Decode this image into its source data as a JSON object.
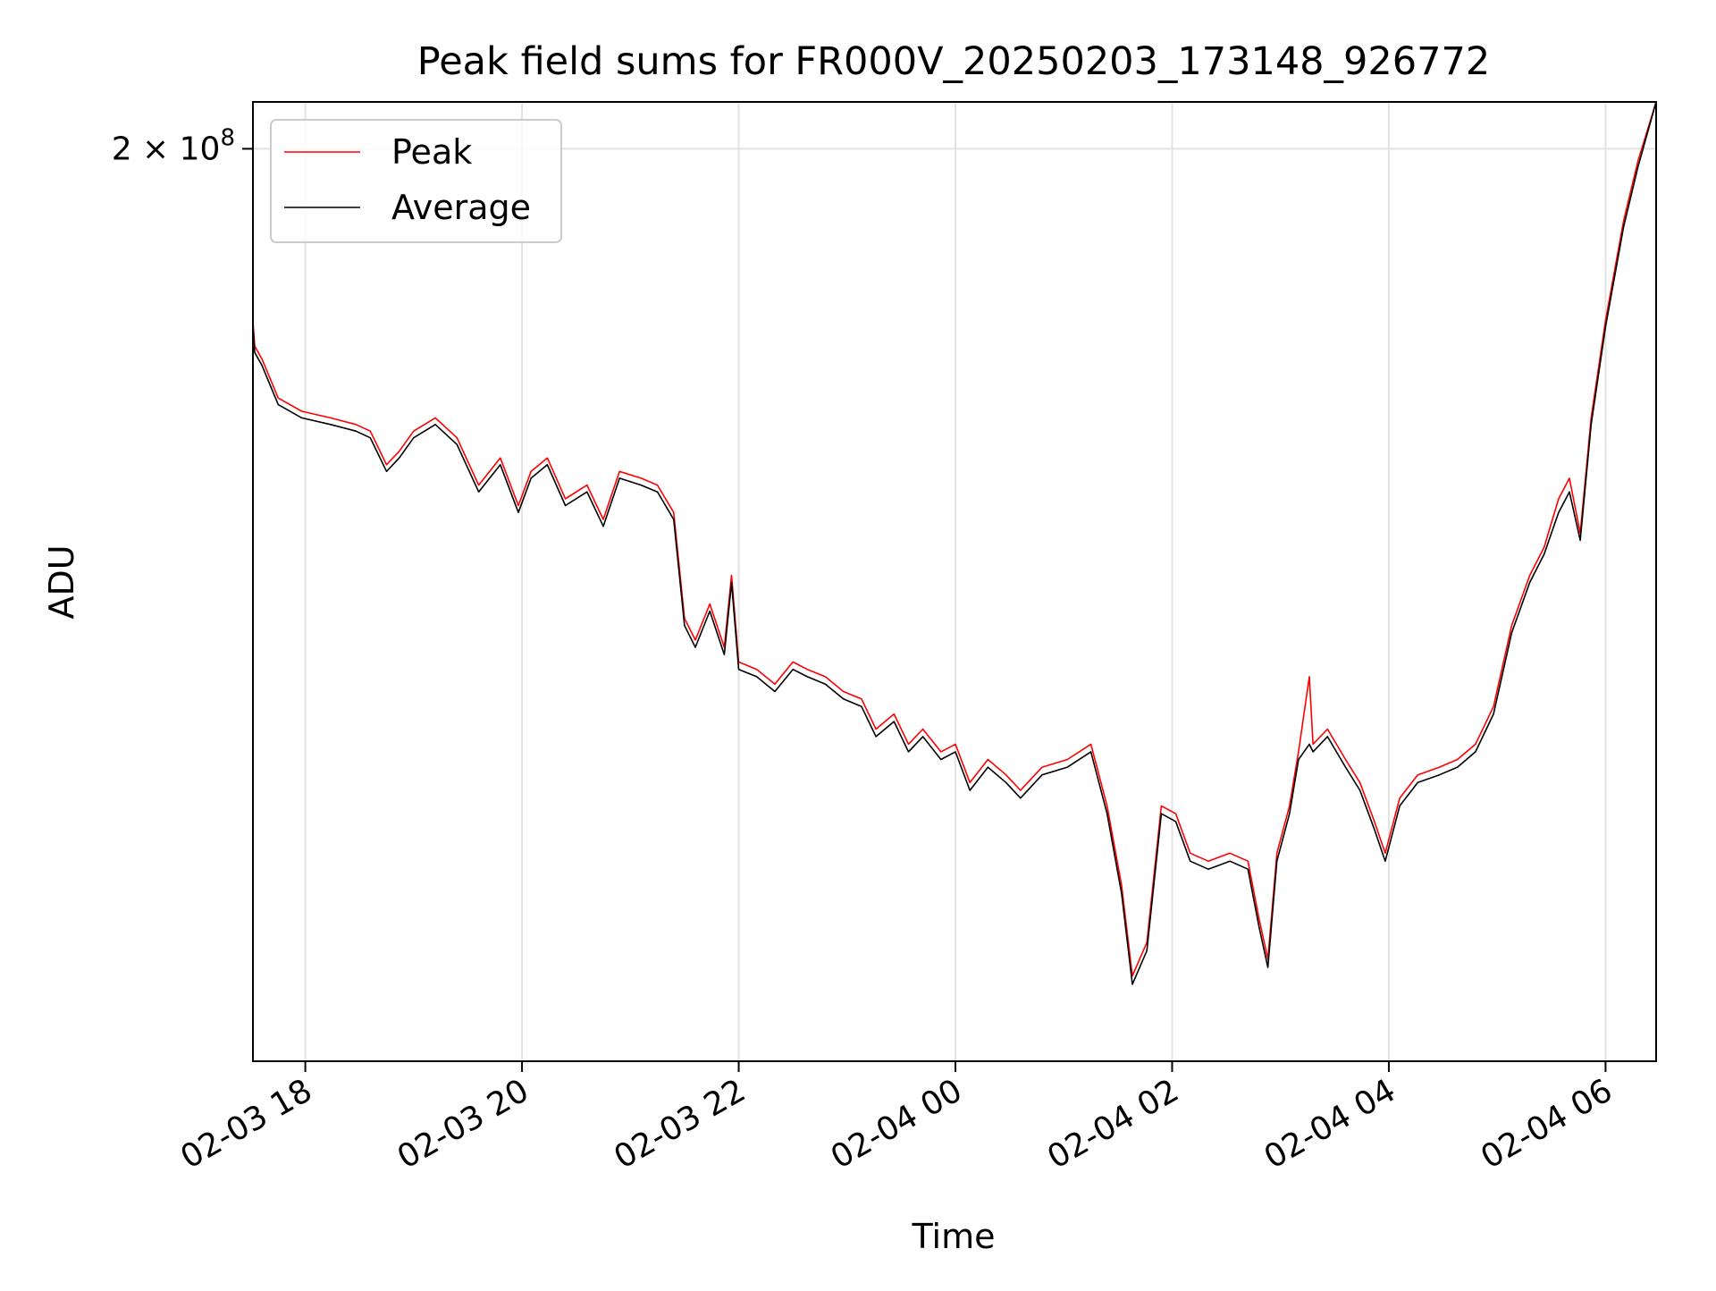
{
  "chart_data": {
    "type": "line",
    "title": "Peak field sums for FR000V_20250203_173148_926772",
    "xlabel": "Time",
    "ylabel": "ADU",
    "x_axis": {
      "kind": "datetime",
      "range": [
        "2025-02-03 17:31",
        "2025-02-04 06:28"
      ],
      "ticks": [
        {
          "value": "2025-02-03 18:00",
          "label": "02-03 18"
        },
        {
          "value": "2025-02-03 20:00",
          "label": "02-03 20"
        },
        {
          "value": "2025-02-03 22:00",
          "label": "02-03 22"
        },
        {
          "value": "2025-02-04 00:00",
          "label": "02-04 00"
        },
        {
          "value": "2025-02-04 02:00",
          "label": "02-04 02"
        },
        {
          "value": "2025-02-04 04:00",
          "label": "02-04 04"
        },
        {
          "value": "2025-02-04 06:00",
          "label": "02-04 06"
        }
      ]
    },
    "y_axis": {
      "scale": "log",
      "range": [
        136000000,
        204000000
      ],
      "ticks": [
        {
          "value": 200000000,
          "base": "2 × 10",
          "exponent": "8"
        }
      ]
    },
    "grid": true,
    "legend": {
      "placement": "top-left",
      "entries": [
        "Peak",
        "Average"
      ]
    },
    "colors": {
      "Peak": "#ff0000",
      "Average": "#000000"
    },
    "series": [
      {
        "name": "Peak",
        "color": "#ff0000",
        "points": [
          [
            "2025-02-03 17:31",
            186000000
          ],
          [
            "2025-02-03 17:32",
            184000000
          ],
          [
            "2025-02-03 17:36",
            183000000
          ],
          [
            "2025-02-03 17:45",
            180000000
          ],
          [
            "2025-02-03 17:58",
            179000000
          ],
          [
            "2025-02-03 18:14",
            178500000
          ],
          [
            "2025-02-03 18:28",
            178000000
          ],
          [
            "2025-02-03 18:36",
            177500000
          ],
          [
            "2025-02-03 18:45",
            175000000
          ],
          [
            "2025-02-03 18:52",
            176000000
          ],
          [
            "2025-02-03 19:00",
            177500000
          ],
          [
            "2025-02-03 19:12",
            178500000
          ],
          [
            "2025-02-03 19:24",
            177000000
          ],
          [
            "2025-02-03 19:36",
            173500000
          ],
          [
            "2025-02-03 19:48",
            175500000
          ],
          [
            "2025-02-03 19:58",
            172000000
          ],
          [
            "2025-02-03 20:05",
            174500000
          ],
          [
            "2025-02-03 20:14",
            175500000
          ],
          [
            "2025-02-03 20:24",
            172500000
          ],
          [
            "2025-02-03 20:36",
            173500000
          ],
          [
            "2025-02-03 20:45",
            171000000
          ],
          [
            "2025-02-03 20:54",
            174500000
          ],
          [
            "2025-02-03 21:06",
            174000000
          ],
          [
            "2025-02-03 21:15",
            173500000
          ],
          [
            "2025-02-03 21:24",
            171500000
          ],
          [
            "2025-02-03 21:30",
            164000000
          ],
          [
            "2025-02-03 21:36",
            162500000
          ],
          [
            "2025-02-03 21:44",
            165000000
          ],
          [
            "2025-02-03 21:52",
            162000000
          ],
          [
            "2025-02-03 21:56",
            167000000
          ],
          [
            "2025-02-03 22:00",
            161000000
          ],
          [
            "2025-02-03 22:10",
            160500000
          ],
          [
            "2025-02-03 22:20",
            159500000
          ],
          [
            "2025-02-03 22:30",
            161000000
          ],
          [
            "2025-02-03 22:38",
            160500000
          ],
          [
            "2025-02-03 22:48",
            160000000
          ],
          [
            "2025-02-03 22:58",
            159000000
          ],
          [
            "2025-02-03 23:08",
            158500000
          ],
          [
            "2025-02-03 23:16",
            156500000
          ],
          [
            "2025-02-03 23:26",
            157500000
          ],
          [
            "2025-02-03 23:34",
            155500000
          ],
          [
            "2025-02-03 23:42",
            156500000
          ],
          [
            "2025-02-03 23:52",
            155000000
          ],
          [
            "2025-02-04 00:00",
            155500000
          ],
          [
            "2025-02-04 00:08",
            153000000
          ],
          [
            "2025-02-04 00:18",
            154500000
          ],
          [
            "2025-02-04 00:28",
            153500000
          ],
          [
            "2025-02-04 00:36",
            152500000
          ],
          [
            "2025-02-04 00:48",
            154000000
          ],
          [
            "2025-02-04 01:02",
            154500000
          ],
          [
            "2025-02-04 01:15",
            155500000
          ],
          [
            "2025-02-04 01:24",
            151500000
          ],
          [
            "2025-02-04 01:32",
            146500000
          ],
          [
            "2025-02-04 01:38",
            141000000
          ],
          [
            "2025-02-04 01:46",
            143000000
          ],
          [
            "2025-02-04 01:54",
            151500000
          ],
          [
            "2025-02-04 02:02",
            151000000
          ],
          [
            "2025-02-04 02:10",
            148500000
          ],
          [
            "2025-02-04 02:20",
            148000000
          ],
          [
            "2025-02-04 02:32",
            148500000
          ],
          [
            "2025-02-04 02:42",
            148000000
          ],
          [
            "2025-02-04 02:48",
            144500000
          ],
          [
            "2025-02-04 02:53",
            142000000
          ],
          [
            "2025-02-04 02:58",
            148500000
          ],
          [
            "2025-02-04 03:05",
            151500000
          ],
          [
            "2025-02-04 03:10",
            155000000
          ],
          [
            "2025-02-04 03:16",
            160000000
          ],
          [
            "2025-02-04 03:18",
            155500000
          ],
          [
            "2025-02-04 03:26",
            156500000
          ],
          [
            "2025-02-04 03:36",
            154500000
          ],
          [
            "2025-02-04 03:44",
            153000000
          ],
          [
            "2025-02-04 03:52",
            150500000
          ],
          [
            "2025-02-04 03:58",
            148500000
          ],
          [
            "2025-02-04 04:06",
            152000000
          ],
          [
            "2025-02-04 04:16",
            153500000
          ],
          [
            "2025-02-04 04:28",
            154000000
          ],
          [
            "2025-02-04 04:38",
            154500000
          ],
          [
            "2025-02-04 04:48",
            155500000
          ],
          [
            "2025-02-04 04:58",
            158000000
          ],
          [
            "2025-02-04 05:08",
            163500000
          ],
          [
            "2025-02-04 05:18",
            167000000
          ],
          [
            "2025-02-04 05:26",
            169000000
          ],
          [
            "2025-02-04 05:34",
            172500000
          ],
          [
            "2025-02-04 05:40",
            174000000
          ],
          [
            "2025-02-04 05:46",
            170000000
          ],
          [
            "2025-02-04 05:52",
            178500000
          ],
          [
            "2025-02-04 06:00",
            186000000
          ],
          [
            "2025-02-04 06:10",
            194000000
          ],
          [
            "2025-02-04 06:18",
            199000000
          ],
          [
            "2025-02-04 06:28",
            204000000
          ]
        ]
      },
      {
        "name": "Average",
        "color": "#000000",
        "points": [
          [
            "2025-02-03 17:31",
            185500000
          ],
          [
            "2025-02-03 17:32",
            183500000
          ],
          [
            "2025-02-03 17:36",
            182500000
          ],
          [
            "2025-02-03 17:45",
            179500000
          ],
          [
            "2025-02-03 17:58",
            178500000
          ],
          [
            "2025-02-03 18:14",
            178000000
          ],
          [
            "2025-02-03 18:28",
            177500000
          ],
          [
            "2025-02-03 18:36",
            177000000
          ],
          [
            "2025-02-03 18:45",
            174500000
          ],
          [
            "2025-02-03 18:52",
            175500000
          ],
          [
            "2025-02-03 19:00",
            177000000
          ],
          [
            "2025-02-03 19:12",
            178000000
          ],
          [
            "2025-02-03 19:24",
            176500000
          ],
          [
            "2025-02-03 19:36",
            173000000
          ],
          [
            "2025-02-03 19:48",
            175000000
          ],
          [
            "2025-02-03 19:58",
            171500000
          ],
          [
            "2025-02-03 20:05",
            174000000
          ],
          [
            "2025-02-03 20:14",
            175000000
          ],
          [
            "2025-02-03 20:24",
            172000000
          ],
          [
            "2025-02-03 20:36",
            173000000
          ],
          [
            "2025-02-03 20:45",
            170500000
          ],
          [
            "2025-02-03 20:54",
            174000000
          ],
          [
            "2025-02-03 21:06",
            173500000
          ],
          [
            "2025-02-03 21:15",
            173000000
          ],
          [
            "2025-02-03 21:24",
            171000000
          ],
          [
            "2025-02-03 21:30",
            163500000
          ],
          [
            "2025-02-03 21:36",
            162000000
          ],
          [
            "2025-02-03 21:44",
            164500000
          ],
          [
            "2025-02-03 21:52",
            161500000
          ],
          [
            "2025-02-03 21:56",
            166500000
          ],
          [
            "2025-02-03 22:00",
            160500000
          ],
          [
            "2025-02-03 22:10",
            160000000
          ],
          [
            "2025-02-03 22:20",
            159000000
          ],
          [
            "2025-02-03 22:30",
            160500000
          ],
          [
            "2025-02-03 22:38",
            160000000
          ],
          [
            "2025-02-03 22:48",
            159500000
          ],
          [
            "2025-02-03 22:58",
            158500000
          ],
          [
            "2025-02-03 23:08",
            158000000
          ],
          [
            "2025-02-03 23:16",
            156000000
          ],
          [
            "2025-02-03 23:26",
            157000000
          ],
          [
            "2025-02-03 23:34",
            155000000
          ],
          [
            "2025-02-03 23:42",
            156000000
          ],
          [
            "2025-02-03 23:52",
            154500000
          ],
          [
            "2025-02-04 00:00",
            155000000
          ],
          [
            "2025-02-04 00:08",
            152500000
          ],
          [
            "2025-02-04 00:18",
            154000000
          ],
          [
            "2025-02-04 00:28",
            153000000
          ],
          [
            "2025-02-04 00:36",
            152000000
          ],
          [
            "2025-02-04 00:48",
            153500000
          ],
          [
            "2025-02-04 01:02",
            154000000
          ],
          [
            "2025-02-04 01:15",
            155000000
          ],
          [
            "2025-02-04 01:24",
            151000000
          ],
          [
            "2025-02-04 01:32",
            146000000
          ],
          [
            "2025-02-04 01:38",
            140500000
          ],
          [
            "2025-02-04 01:46",
            142500000
          ],
          [
            "2025-02-04 01:54",
            151000000
          ],
          [
            "2025-02-04 02:02",
            150500000
          ],
          [
            "2025-02-04 02:10",
            148000000
          ],
          [
            "2025-02-04 02:20",
            147500000
          ],
          [
            "2025-02-04 02:32",
            148000000
          ],
          [
            "2025-02-04 02:42",
            147500000
          ],
          [
            "2025-02-04 02:48",
            144000000
          ],
          [
            "2025-02-04 02:53",
            141500000
          ],
          [
            "2025-02-04 02:58",
            148000000
          ],
          [
            "2025-02-04 03:05",
            151000000
          ],
          [
            "2025-02-04 03:10",
            154500000
          ],
          [
            "2025-02-04 03:16",
            155500000
          ],
          [
            "2025-02-04 03:18",
            155000000
          ],
          [
            "2025-02-04 03:26",
            156000000
          ],
          [
            "2025-02-04 03:36",
            154000000
          ],
          [
            "2025-02-04 03:44",
            152500000
          ],
          [
            "2025-02-04 03:52",
            150000000
          ],
          [
            "2025-02-04 03:58",
            148000000
          ],
          [
            "2025-02-04 04:06",
            151500000
          ],
          [
            "2025-02-04 04:16",
            153000000
          ],
          [
            "2025-02-04 04:28",
            153500000
          ],
          [
            "2025-02-04 04:38",
            154000000
          ],
          [
            "2025-02-04 04:48",
            155000000
          ],
          [
            "2025-02-04 04:58",
            157500000
          ],
          [
            "2025-02-04 05:08",
            163000000
          ],
          [
            "2025-02-04 05:18",
            166500000
          ],
          [
            "2025-02-04 05:26",
            168500000
          ],
          [
            "2025-02-04 05:34",
            171500000
          ],
          [
            "2025-02-04 05:40",
            173000000
          ],
          [
            "2025-02-04 05:46",
            169500000
          ],
          [
            "2025-02-04 05:52",
            178000000
          ],
          [
            "2025-02-04 06:00",
            185500000
          ],
          [
            "2025-02-04 06:10",
            193500000
          ],
          [
            "2025-02-04 06:18",
            198500000
          ],
          [
            "2025-02-04 06:28",
            204000000
          ]
        ]
      }
    ]
  }
}
